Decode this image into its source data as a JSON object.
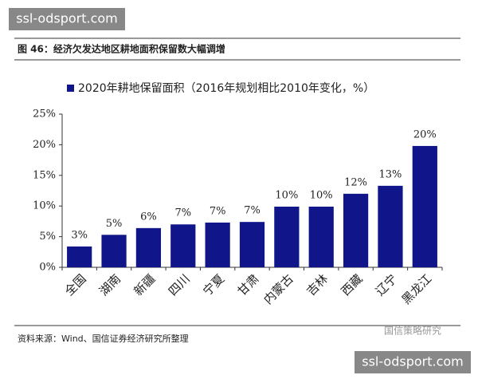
{
  "watermark_top": "ssl-odsport.com",
  "watermark_bottom": "ssl-odsport.com",
  "logo_text": "国信策略研究",
  "source": "资料来源：Wind、国信证券经济研究所整理",
  "chart_data": {
    "type": "bar",
    "title": "图 46：经济欠发达地区耕地面积保留数大幅调增",
    "categories": [
      "全国",
      "湖南",
      "新疆",
      "四川",
      "宁夏",
      "甘肃",
      "内蒙古",
      "吉林",
      "西藏",
      "辽宁",
      "黑龙江"
    ],
    "series": [
      {
        "name": "2020年耕地保留面积（2016年规划相比2010年变化，%）",
        "color": "#10168a",
        "values": [
          3.4,
          5.3,
          6.4,
          7.0,
          7.3,
          7.4,
          9.9,
          9.9,
          12.0,
          13.3,
          19.8
        ],
        "value_labels": [
          "3%",
          "5%",
          "6%",
          "7%",
          "7%",
          "7%",
          "10%",
          "10%",
          "12%",
          "13%",
          "20%"
        ]
      }
    ],
    "ylim": [
      0,
      25
    ],
    "yticks": [
      {
        "value": 0,
        "label": "0%"
      },
      {
        "value": 5,
        "label": "5%"
      },
      {
        "value": 10,
        "label": "10%"
      },
      {
        "value": 15,
        "label": "15%"
      },
      {
        "value": 20,
        "label": "20%"
      },
      {
        "value": 25,
        "label": "25%"
      }
    ],
    "grid": false
  }
}
